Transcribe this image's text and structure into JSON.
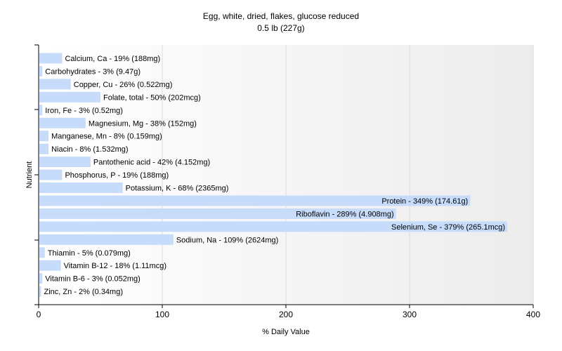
{
  "chart_data": {
    "type": "bar",
    "orientation": "horizontal",
    "title": "Egg, white, dried, flakes, glucose reduced",
    "subtitle": "0.5 lb (227g)",
    "xlabel": "% Daily Value",
    "ylabel": "Nutrient",
    "xlim": [
      0,
      400
    ],
    "xticks": [
      0,
      100,
      200,
      300,
      400
    ],
    "grid": true,
    "bar_color": "#c6dcfa",
    "categories": [
      "Calcium, Ca",
      "Carbohydrates",
      "Copper, Cu",
      "Folate, total",
      "Iron, Fe",
      "Magnesium, Mg",
      "Manganese, Mn",
      "Niacin",
      "Pantothenic acid",
      "Phosphorus, P",
      "Potassium, K",
      "Protein",
      "Riboflavin",
      "Selenium, Se",
      "Sodium, Na",
      "Thiamin",
      "Vitamin B-12",
      "Vitamin B-6",
      "Zinc, Zn"
    ],
    "values": [
      19,
      3,
      26,
      50,
      3,
      38,
      8,
      8,
      42,
      19,
      68,
      349,
      289,
      379,
      109,
      5,
      18,
      3,
      2
    ],
    "labels": [
      "Calcium, Ca - 19% (188mg)",
      "Carbohydrates - 3% (9.47g)",
      "Copper, Cu - 26% (0.522mg)",
      "Folate, total - 50% (202mcg)",
      "Iron, Fe - 3% (0.52mg)",
      "Magnesium, Mg - 38% (152mg)",
      "Manganese, Mn - 8% (0.159mg)",
      "Niacin - 8% (1.532mg)",
      "Pantothenic acid - 42% (4.152mg)",
      "Phosphorus, P - 19% (188mg)",
      "Potassium, K - 68% (2365mg)",
      "Protein - 349% (174.61g)",
      "Riboflavin - 289% (4.908mg)",
      "Selenium, Se - 379% (265.1mcg)",
      "Sodium, Na - 109% (2624mg)",
      "Thiamin - 5% (0.079mg)",
      "Vitamin B-12 - 18% (1.11mcg)",
      "Vitamin B-6 - 3% (0.052mg)",
      "Zinc, Zn - 2% (0.34mg)"
    ]
  }
}
